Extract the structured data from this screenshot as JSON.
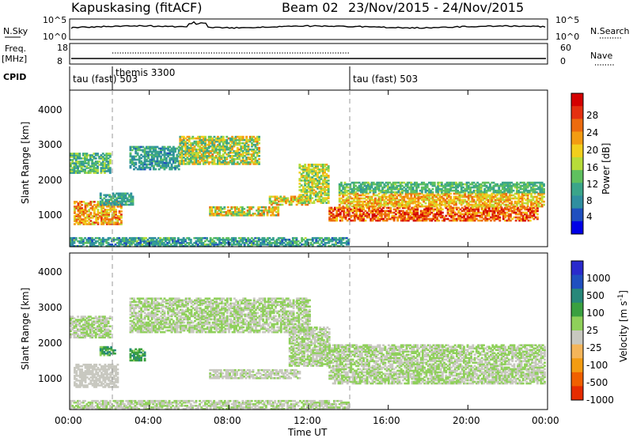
{
  "header": {
    "station": "Kapuskasing (fitACF)",
    "beam": "Beam 02",
    "dates": "23/Nov/2015 - 24/Nov/2015"
  },
  "strip_labels": {
    "nsky": "N.Sky",
    "nsearch": "N.Search",
    "freq": "Freq.",
    "freq_unit": "[MHz]",
    "nave": "Nave",
    "cpid": "CPID",
    "left_exp_base": "10",
    "left_top_exp": "^5",
    "left_bot_exp": "^0",
    "nsky_ticks": [
      "10^5",
      "10^0"
    ],
    "nsearch_ticks": [
      "10^5",
      "10^0"
    ],
    "freq_ticks": [
      "18",
      "8"
    ],
    "nave_ticks": [
      "60",
      "0"
    ]
  },
  "cpid_labels": [
    {
      "text": "tau (fast) 503",
      "hour": 0.0
    },
    {
      "text": "themis 3300",
      "hour": 2.0
    },
    {
      "text": "tau (fast) 503",
      "hour": 14.0
    }
  ],
  "time_axis": {
    "label": "Time UT",
    "ticks": [
      "00:00",
      "04:00",
      "08:00",
      "12:00",
      "16:00",
      "20:00",
      "00:00"
    ],
    "range_hours": [
      0,
      24
    ]
  },
  "panels": {
    "power": {
      "ylabel": "Slant Range [km]",
      "yticks": [
        "1000",
        "2000",
        "3000",
        "4000"
      ],
      "cbar_label": "Power [dB]",
      "cbar_ticks": [
        "4",
        "8",
        "12",
        "16",
        "20",
        "24",
        "28"
      ]
    },
    "velocity": {
      "ylabel": "Slant Range [km]",
      "yticks": [
        "1000",
        "2000",
        "3000",
        "4000"
      ],
      "cbar_label": "Velocity [m s^-1]",
      "cbar_ticks": [
        "1000",
        "500",
        "100",
        "25",
        "-25",
        "-100",
        "-500",
        "-1000"
      ]
    }
  },
  "chart_data": [
    {
      "type": "heatmap",
      "name": "power",
      "x_units": "hours UT",
      "y_units": "km",
      "xlim": [
        0,
        24
      ],
      "ylim": [
        180,
        4600
      ],
      "zlabel": "Power [dB]",
      "zlim": [
        0,
        30
      ],
      "palette": [
        "#0000e6",
        "#1f4fbf",
        "#2f8fa0",
        "#3aa58a",
        "#5fc05f",
        "#b7dc3a",
        "#f2cf1d",
        "#f39c12",
        "#ec6b0f",
        "#e43010",
        "#d40000"
      ],
      "echo_bands": [
        {
          "x": [
            0.0,
            2.0
          ],
          "y": [
            2250,
            2800
          ],
          "z": [
            6,
            16
          ]
        },
        {
          "x": [
            0.2,
            2.6
          ],
          "y": [
            800,
            1450
          ],
          "z": [
            14,
            26
          ]
        },
        {
          "x": [
            1.5,
            3.2
          ],
          "y": [
            1350,
            1700
          ],
          "z": [
            6,
            12
          ]
        },
        {
          "x": [
            3.0,
            5.5
          ],
          "y": [
            2350,
            3000
          ],
          "z": [
            5,
            12
          ]
        },
        {
          "x": [
            5.5,
            9.5
          ],
          "y": [
            2500,
            3300
          ],
          "z": [
            8,
            22
          ]
        },
        {
          "x": [
            7.0,
            10.5
          ],
          "y": [
            1050,
            1300
          ],
          "z": [
            10,
            24
          ]
        },
        {
          "x": [
            10.0,
            12.0
          ],
          "y": [
            1350,
            1600
          ],
          "z": [
            12,
            24
          ]
        },
        {
          "x": [
            11.5,
            13.0
          ],
          "y": [
            1400,
            2500
          ],
          "z": [
            10,
            20
          ]
        },
        {
          "x": [
            13.0,
            23.5
          ],
          "y": [
            900,
            1300
          ],
          "z": [
            18,
            30
          ]
        },
        {
          "x": [
            13.5,
            23.8
          ],
          "y": [
            1300,
            1700
          ],
          "z": [
            14,
            24
          ]
        },
        {
          "x": [
            13.5,
            23.8
          ],
          "y": [
            1700,
            2000
          ],
          "z": [
            8,
            14
          ]
        },
        {
          "x": [
            0.0,
            14.0
          ],
          "y": [
            180,
            450
          ],
          "z": [
            4,
            14
          ]
        }
      ]
    },
    {
      "type": "heatmap",
      "name": "velocity",
      "x_units": "hours UT",
      "y_units": "km",
      "xlim": [
        0,
        24
      ],
      "ylim": [
        180,
        4600
      ],
      "zlabel": "Velocity [m s^-1]",
      "zlim": [
        -1000,
        1000
      ],
      "palette": [
        "#2a2acc",
        "#1f4fbf",
        "#27887a",
        "#3aa040",
        "#8fd05a",
        "#c8c8c0",
        "#f4b55a",
        "#f39c12",
        "#f06000",
        "#e62c00"
      ],
      "echo_bands": [
        {
          "x": [
            0.0,
            2.0
          ],
          "y": [
            2200,
            2800
          ],
          "z": [
            -25,
            25
          ]
        },
        {
          "x": [
            0.2,
            2.4
          ],
          "y": [
            800,
            1450
          ],
          "z": [
            25,
            150
          ]
        },
        {
          "x": [
            1.5,
            2.3
          ],
          "y": [
            1700,
            1950
          ],
          "z": [
            -500,
            -100
          ]
        },
        {
          "x": [
            3.0,
            3.8
          ],
          "y": [
            1550,
            1900
          ],
          "z": [
            -500,
            -150
          ]
        },
        {
          "x": [
            3.0,
            12.0
          ],
          "y": [
            2350,
            3300
          ],
          "z": [
            -25,
            25
          ]
        },
        {
          "x": [
            7.0,
            11.5
          ],
          "y": [
            1050,
            1300
          ],
          "z": [
            -25,
            100
          ]
        },
        {
          "x": [
            11.0,
            13.0
          ],
          "y": [
            1400,
            2500
          ],
          "z": [
            -25,
            25
          ]
        },
        {
          "x": [
            13.0,
            23.8
          ],
          "y": [
            900,
            2000
          ],
          "z": [
            -25,
            25
          ]
        },
        {
          "x": [
            0.0,
            14.0
          ],
          "y": [
            180,
            450
          ],
          "z": [
            -100,
            150
          ]
        }
      ]
    }
  ],
  "colors": {
    "frame": "#000000",
    "dashed_divider": "#9a9a9a",
    "cbar_power_bottom": "#0000e6",
    "cbar_power_top": "#d40000",
    "cbar_velocity_top": "#2a2acc",
    "cbar_velocity_bottom": "#e62c00"
  }
}
